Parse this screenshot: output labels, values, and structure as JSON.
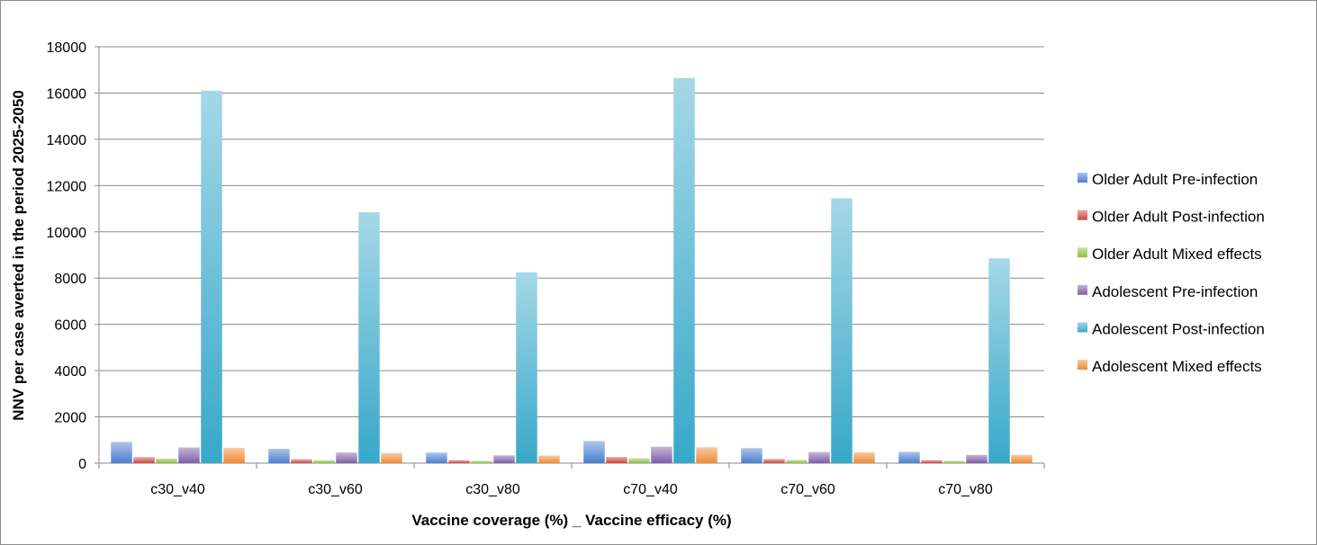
{
  "chart_data": {
    "type": "bar",
    "title": "",
    "xlabel": "Vaccine coverage (%) _ Vaccine efficacy (%)",
    "ylabel": "NNV per case averted in the period 2025-2050",
    "ylim": [
      0,
      18000
    ],
    "yticks": [
      0,
      2000,
      4000,
      6000,
      8000,
      10000,
      12000,
      14000,
      16000,
      18000
    ],
    "grid": true,
    "legend": "right",
    "categories": [
      "c30_v40",
      "c30_v60",
      "c30_v80",
      "c70_v40",
      "c70_v60",
      "c70_v80"
    ],
    "series": [
      {
        "name": "Older Adult Pre-infection",
        "color": "#4a7fd0",
        "values": [
          920,
          620,
          460,
          960,
          650,
          490
        ]
      },
      {
        "name": "Older Adult Post-infection",
        "color": "#d0443e",
        "values": [
          260,
          170,
          130,
          270,
          180,
          130
        ]
      },
      {
        "name": "Older Adult Mixed effects",
        "color": "#8cbf3f",
        "values": [
          200,
          130,
          100,
          210,
          140,
          100
        ]
      },
      {
        "name": "Adolescent Pre-infection",
        "color": "#7d5ea8",
        "values": [
          680,
          460,
          340,
          710,
          480,
          360
        ]
      },
      {
        "name": "Adolescent Post-infection",
        "color": "#37a8c9",
        "values": [
          16100,
          10850,
          8250,
          16650,
          11450,
          8850
        ]
      },
      {
        "name": "Adolescent Mixed effects",
        "color": "#f08a33",
        "values": [
          660,
          440,
          330,
          690,
          470,
          360
        ]
      }
    ]
  }
}
